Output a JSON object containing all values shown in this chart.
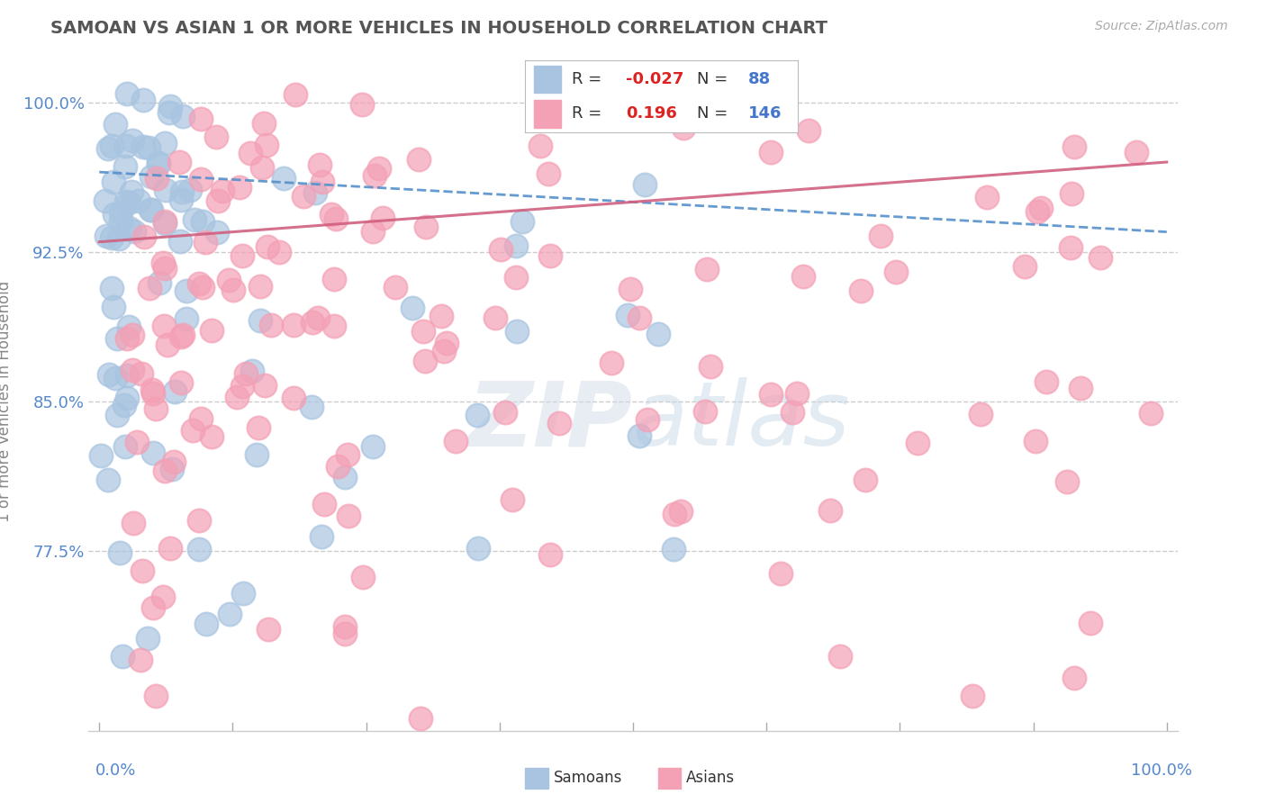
{
  "title": "SAMOAN VS ASIAN 1 OR MORE VEHICLES IN HOUSEHOLD CORRELATION CHART",
  "source": "Source: ZipAtlas.com",
  "ylabel": "1 or more Vehicles in Household",
  "ylim": [
    0.685,
    1.015
  ],
  "xlim": [
    -0.01,
    1.01
  ],
  "yticks": [
    0.775,
    0.85,
    0.925,
    1.0
  ],
  "ytick_labels": [
    "77.5%",
    "85.0%",
    "92.5%",
    "100.0%"
  ],
  "legend_r_samoan": "-0.027",
  "legend_n_samoan": "88",
  "legend_r_asian": "0.196",
  "legend_n_asian": "146",
  "samoan_color": "#a8c4e0",
  "asian_color": "#f4a0b5",
  "samoan_line_color": "#5590cc",
  "asian_line_color": "#d06080",
  "background_color": "#ffffff",
  "grid_color": "#cccccc",
  "tick_color": "#5588cc",
  "title_color": "#555555",
  "source_color": "#aaaaaa",
  "ylabel_color": "#888888",
  "samoan_trend_y0": 0.965,
  "samoan_trend_y1": 0.935,
  "asian_trend_y0": 0.93,
  "asian_trend_y1": 0.97
}
